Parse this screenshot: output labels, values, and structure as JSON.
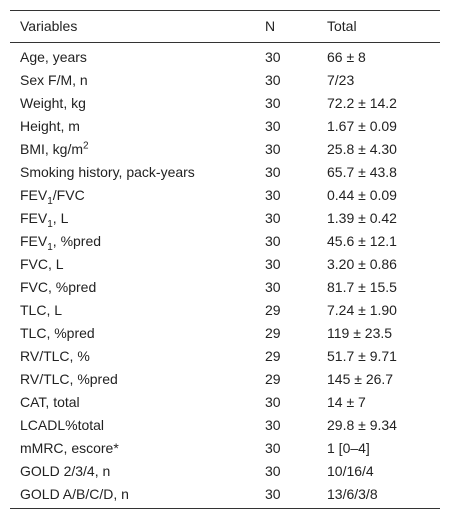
{
  "table": {
    "header": [
      "Variables",
      "N",
      "Total"
    ],
    "rows": [
      [
        [
          "Age, years"
        ],
        "30",
        "66 ± 8"
      ],
      [
        [
          "Sex F/M, n"
        ],
        "30",
        "7/23"
      ],
      [
        [
          "Weight, kg"
        ],
        "30",
        "72.2 ± 14.2"
      ],
      [
        [
          "Height, m"
        ],
        "30",
        "1.67 ± 0.09"
      ],
      [
        [
          "BMI, kg/m",
          {
            "sup": "2"
          }
        ],
        "30",
        "25.8 ± 4.30"
      ],
      [
        [
          "Smoking history, pack-years"
        ],
        "30",
        "65.7 ± 43.8"
      ],
      [
        [
          "FEV",
          {
            "sub": "1"
          },
          "/FVC"
        ],
        "30",
        "0.44 ± 0.09"
      ],
      [
        [
          "FEV",
          {
            "sub": "1"
          },
          ", L"
        ],
        "30",
        "1.39 ± 0.42"
      ],
      [
        [
          "FEV",
          {
            "sub": "1"
          },
          ", %pred"
        ],
        "30",
        "45.6 ± 12.1"
      ],
      [
        [
          "FVC, L"
        ],
        "30",
        "3.20 ± 0.86"
      ],
      [
        [
          "FVC, %pred"
        ],
        "30",
        "81.7 ± 15.5"
      ],
      [
        [
          "TLC, L"
        ],
        "29",
        "7.24 ± 1.90"
      ],
      [
        [
          "TLC, %pred"
        ],
        "29",
        "119 ± 23.5"
      ],
      [
        [
          "RV/TLC, %"
        ],
        "29",
        "51.7 ± 9.71"
      ],
      [
        [
          "RV/TLC, %pred"
        ],
        "29",
        "145 ± 26.7"
      ],
      [
        [
          "CAT, total"
        ],
        "30",
        "14 ± 7"
      ],
      [
        [
          "LCADL%total"
        ],
        "30",
        "29.8 ± 9.34"
      ],
      [
        [
          "mMRC, escore*"
        ],
        "30",
        "1 [0–4]"
      ],
      [
        [
          "GOLD 2/3/4, n"
        ],
        "30",
        "10/16/4"
      ],
      [
        [
          "GOLD A/B/C/D, n"
        ],
        "30",
        "13/6/3/8"
      ]
    ]
  }
}
